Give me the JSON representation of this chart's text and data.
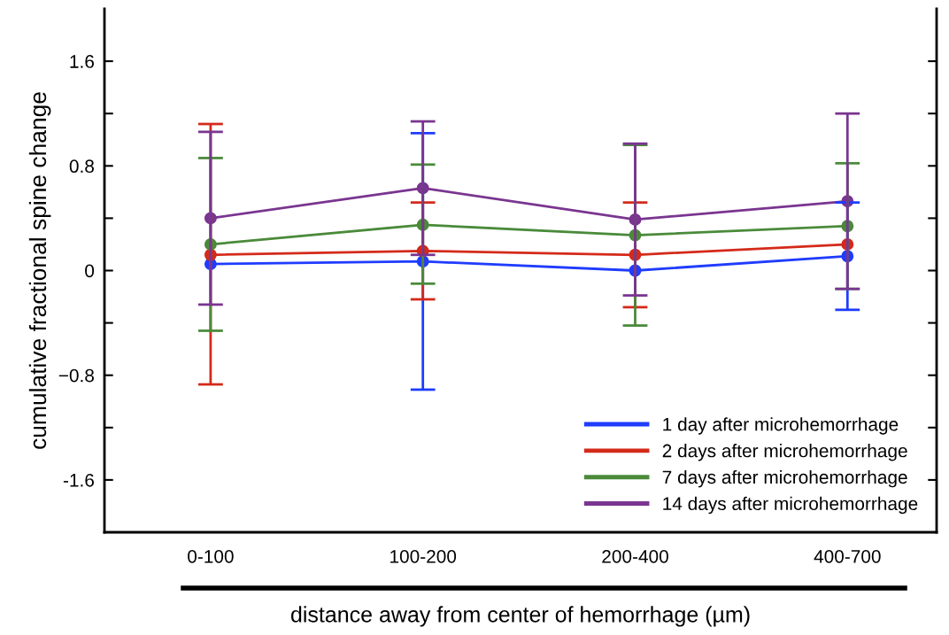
{
  "chart_data": {
    "type": "line",
    "xlabel": "distance away from center of hemorrhage (µm)",
    "ylabel": "cumulative fractional spine change",
    "categories": [
      "0-100",
      "100-200",
      "200-400",
      "400-700"
    ],
    "ylim": [
      -2.0,
      2.0
    ],
    "yticks": [
      {
        "value": -1.6,
        "label": "-1.6"
      },
      {
        "value": -1.2,
        "label": null
      },
      {
        "value": -0.8,
        "label": "−0.8"
      },
      {
        "value": -0.4,
        "label": null
      },
      0,
      {
        "value": 0.4,
        "label": null
      },
      {
        "value": 0.8,
        "label": "0.8"
      },
      {
        "value": 1.2,
        "label": null
      },
      {
        "value": 1.6,
        "label": "1.6"
      }
    ],
    "marker": "circle",
    "line_style": "solid",
    "grid": false,
    "legend": "bottom right",
    "series": [
      {
        "name": "1 day after microhemorrhage",
        "color": "#1f3cff",
        "values": [
          0.05,
          0.07,
          0.0,
          0.11
        ],
        "errors": [
          null,
          [
            -0.91,
            1.05
          ],
          null,
          [
            -0.3,
            0.52
          ]
        ]
      },
      {
        "name": "2 days after microhemorrhage",
        "color": "#d42a1a",
        "values": [
          0.12,
          0.15,
          0.12,
          0.2
        ],
        "errors": [
          [
            -0.87,
            1.12
          ],
          [
            -0.22,
            0.52
          ],
          [
            -0.28,
            0.52
          ],
          null
        ]
      },
      {
        "name": "7 days after microhemorrhage",
        "color": "#4a8a3a",
        "values": [
          0.2,
          0.35,
          0.27,
          0.34
        ],
        "errors": [
          [
            -0.46,
            0.86
          ],
          [
            -0.1,
            0.81
          ],
          [
            -0.42,
            0.96
          ],
          [
            -0.14,
            0.82
          ]
        ]
      },
      {
        "name": "14 days after microhemorrhage",
        "color": "#7a3590",
        "values": [
          0.4,
          0.63,
          0.39,
          0.53
        ],
        "errors": [
          [
            -0.26,
            1.06
          ],
          [
            0.12,
            1.14
          ],
          [
            -0.19,
            0.97
          ],
          [
            -0.14,
            1.2
          ]
        ]
      }
    ]
  }
}
